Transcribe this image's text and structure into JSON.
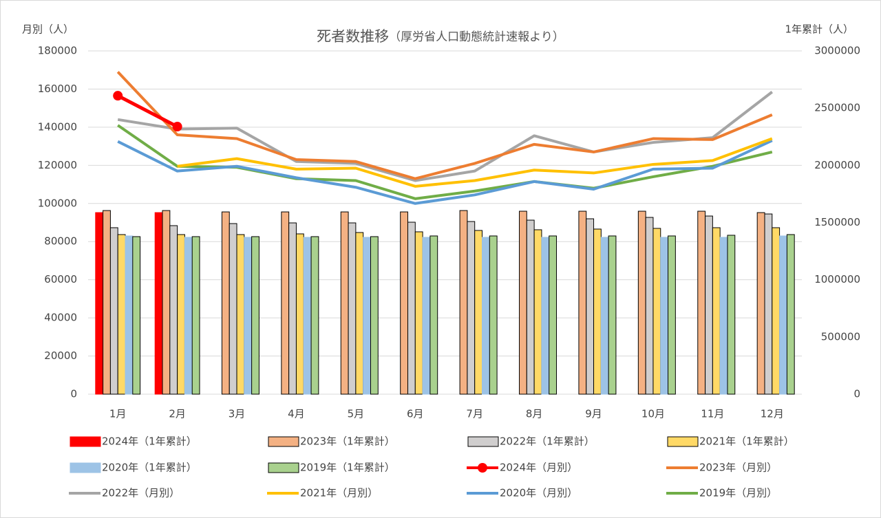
{
  "chart_data": {
    "type": "combo",
    "title": "死者数推移",
    "subtitle": "（厚労省人口動態統計速報より）",
    "y_label": "月別（人）",
    "y2_label": "1年累計（人）",
    "categories": [
      "1月",
      "2月",
      "3月",
      "4月",
      "5月",
      "6月",
      "7月",
      "8月",
      "9月",
      "10月",
      "11月",
      "12月"
    ],
    "ylim": [
      0,
      180000
    ],
    "yticks": [
      0,
      20000,
      40000,
      60000,
      80000,
      100000,
      120000,
      140000,
      160000,
      180000
    ],
    "y2lim": [
      0,
      3000000
    ],
    "y2ticks": [
      0,
      500000,
      1000000,
      1500000,
      2000000,
      2500000,
      3000000
    ],
    "grid": true,
    "legend": "bottom",
    "series": [
      {
        "name": "2024年（1年累計）",
        "type": "bar",
        "axis": "y2",
        "color": "#ff0000",
        "edgecolor": "#ff0000",
        "values": [
          1587000,
          1587000,
          null,
          null,
          null,
          null,
          null,
          null,
          null,
          null,
          null,
          null
        ]
      },
      {
        "name": "2023年（1年累計）",
        "type": "bar",
        "axis": "y2",
        "color": "#f4b183",
        "edgecolor": "#000000",
        "values": [
          1605000,
          1605000,
          1593000,
          1593000,
          1593000,
          1593000,
          1605000,
          1599000,
          1599000,
          1599000,
          1599000,
          1587000
        ]
      },
      {
        "name": "2022年（1年累計）",
        "type": "bar",
        "axis": "y2",
        "color": "#d0cece",
        "edgecolor": "#000000",
        "values": [
          1455000,
          1473000,
          1491000,
          1497000,
          1497000,
          1503000,
          1509000,
          1521000,
          1533000,
          1545000,
          1557000,
          1575000
        ]
      },
      {
        "name": "2021年（1年累計）",
        "type": "bar",
        "axis": "y2",
        "color": "#ffd966",
        "edgecolor": "#000000",
        "values": [
          1395000,
          1395000,
          1395000,
          1401000,
          1413000,
          1419000,
          1431000,
          1437000,
          1443000,
          1449000,
          1455000,
          1455000
        ]
      },
      {
        "name": "2020年（1年累計）",
        "type": "bar",
        "axis": "y2",
        "color": "#9dc3e6",
        "edgecolor": "#9dc3e6",
        "values": [
          1383000,
          1371000,
          1371000,
          1371000,
          1371000,
          1371000,
          1371000,
          1371000,
          1371000,
          1371000,
          1371000,
          1383000
        ]
      },
      {
        "name": "2019年（1年累計）",
        "type": "bar",
        "axis": "y2",
        "color": "#a9d18e",
        "edgecolor": "#000000",
        "values": [
          1377000,
          1377000,
          1377000,
          1377000,
          1377000,
          1383000,
          1383000,
          1383000,
          1383000,
          1383000,
          1389000,
          1395000
        ]
      },
      {
        "name": "2024年（月別）",
        "type": "line",
        "axis": "y",
        "color": "#ff0000",
        "marker": true,
        "values": [
          156500,
          140300,
          null,
          null,
          null,
          null,
          null,
          null,
          null,
          null,
          null,
          null
        ]
      },
      {
        "name": "2023年（月別）",
        "type": "line",
        "axis": "y",
        "color": "#ed7d31",
        "values": [
          169000,
          136000,
          134000,
          123000,
          122000,
          113000,
          121000,
          131000,
          127000,
          134000,
          133500,
          146500
        ]
      },
      {
        "name": "2022年（月別）",
        "type": "line",
        "axis": "y",
        "color": "#a5a5a5",
        "values": [
          144000,
          139000,
          139500,
          122000,
          121000,
          112000,
          117000,
          135500,
          127000,
          132000,
          134500,
          158500
        ]
      },
      {
        "name": "2021年（月別）",
        "type": "line",
        "axis": "y",
        "color": "#ffc000",
        "values": [
          null,
          119500,
          123500,
          118000,
          118500,
          109000,
          112000,
          117500,
          116000,
          120500,
          122500,
          134000
        ]
      },
      {
        "name": "2020年（月別）",
        "type": "line",
        "axis": "y",
        "color": "#5b9bd5",
        "values": [
          132500,
          117000,
          119500,
          113500,
          108500,
          100000,
          104500,
          111500,
          107500,
          118000,
          118500,
          133000
        ]
      },
      {
        "name": "2019年（月別）",
        "type": "line",
        "axis": "y",
        "color": "#70ad47",
        "values": [
          141000,
          119500,
          119000,
          113000,
          112000,
          102500,
          106500,
          111500,
          108000,
          114000,
          119500,
          127000
        ]
      }
    ]
  }
}
